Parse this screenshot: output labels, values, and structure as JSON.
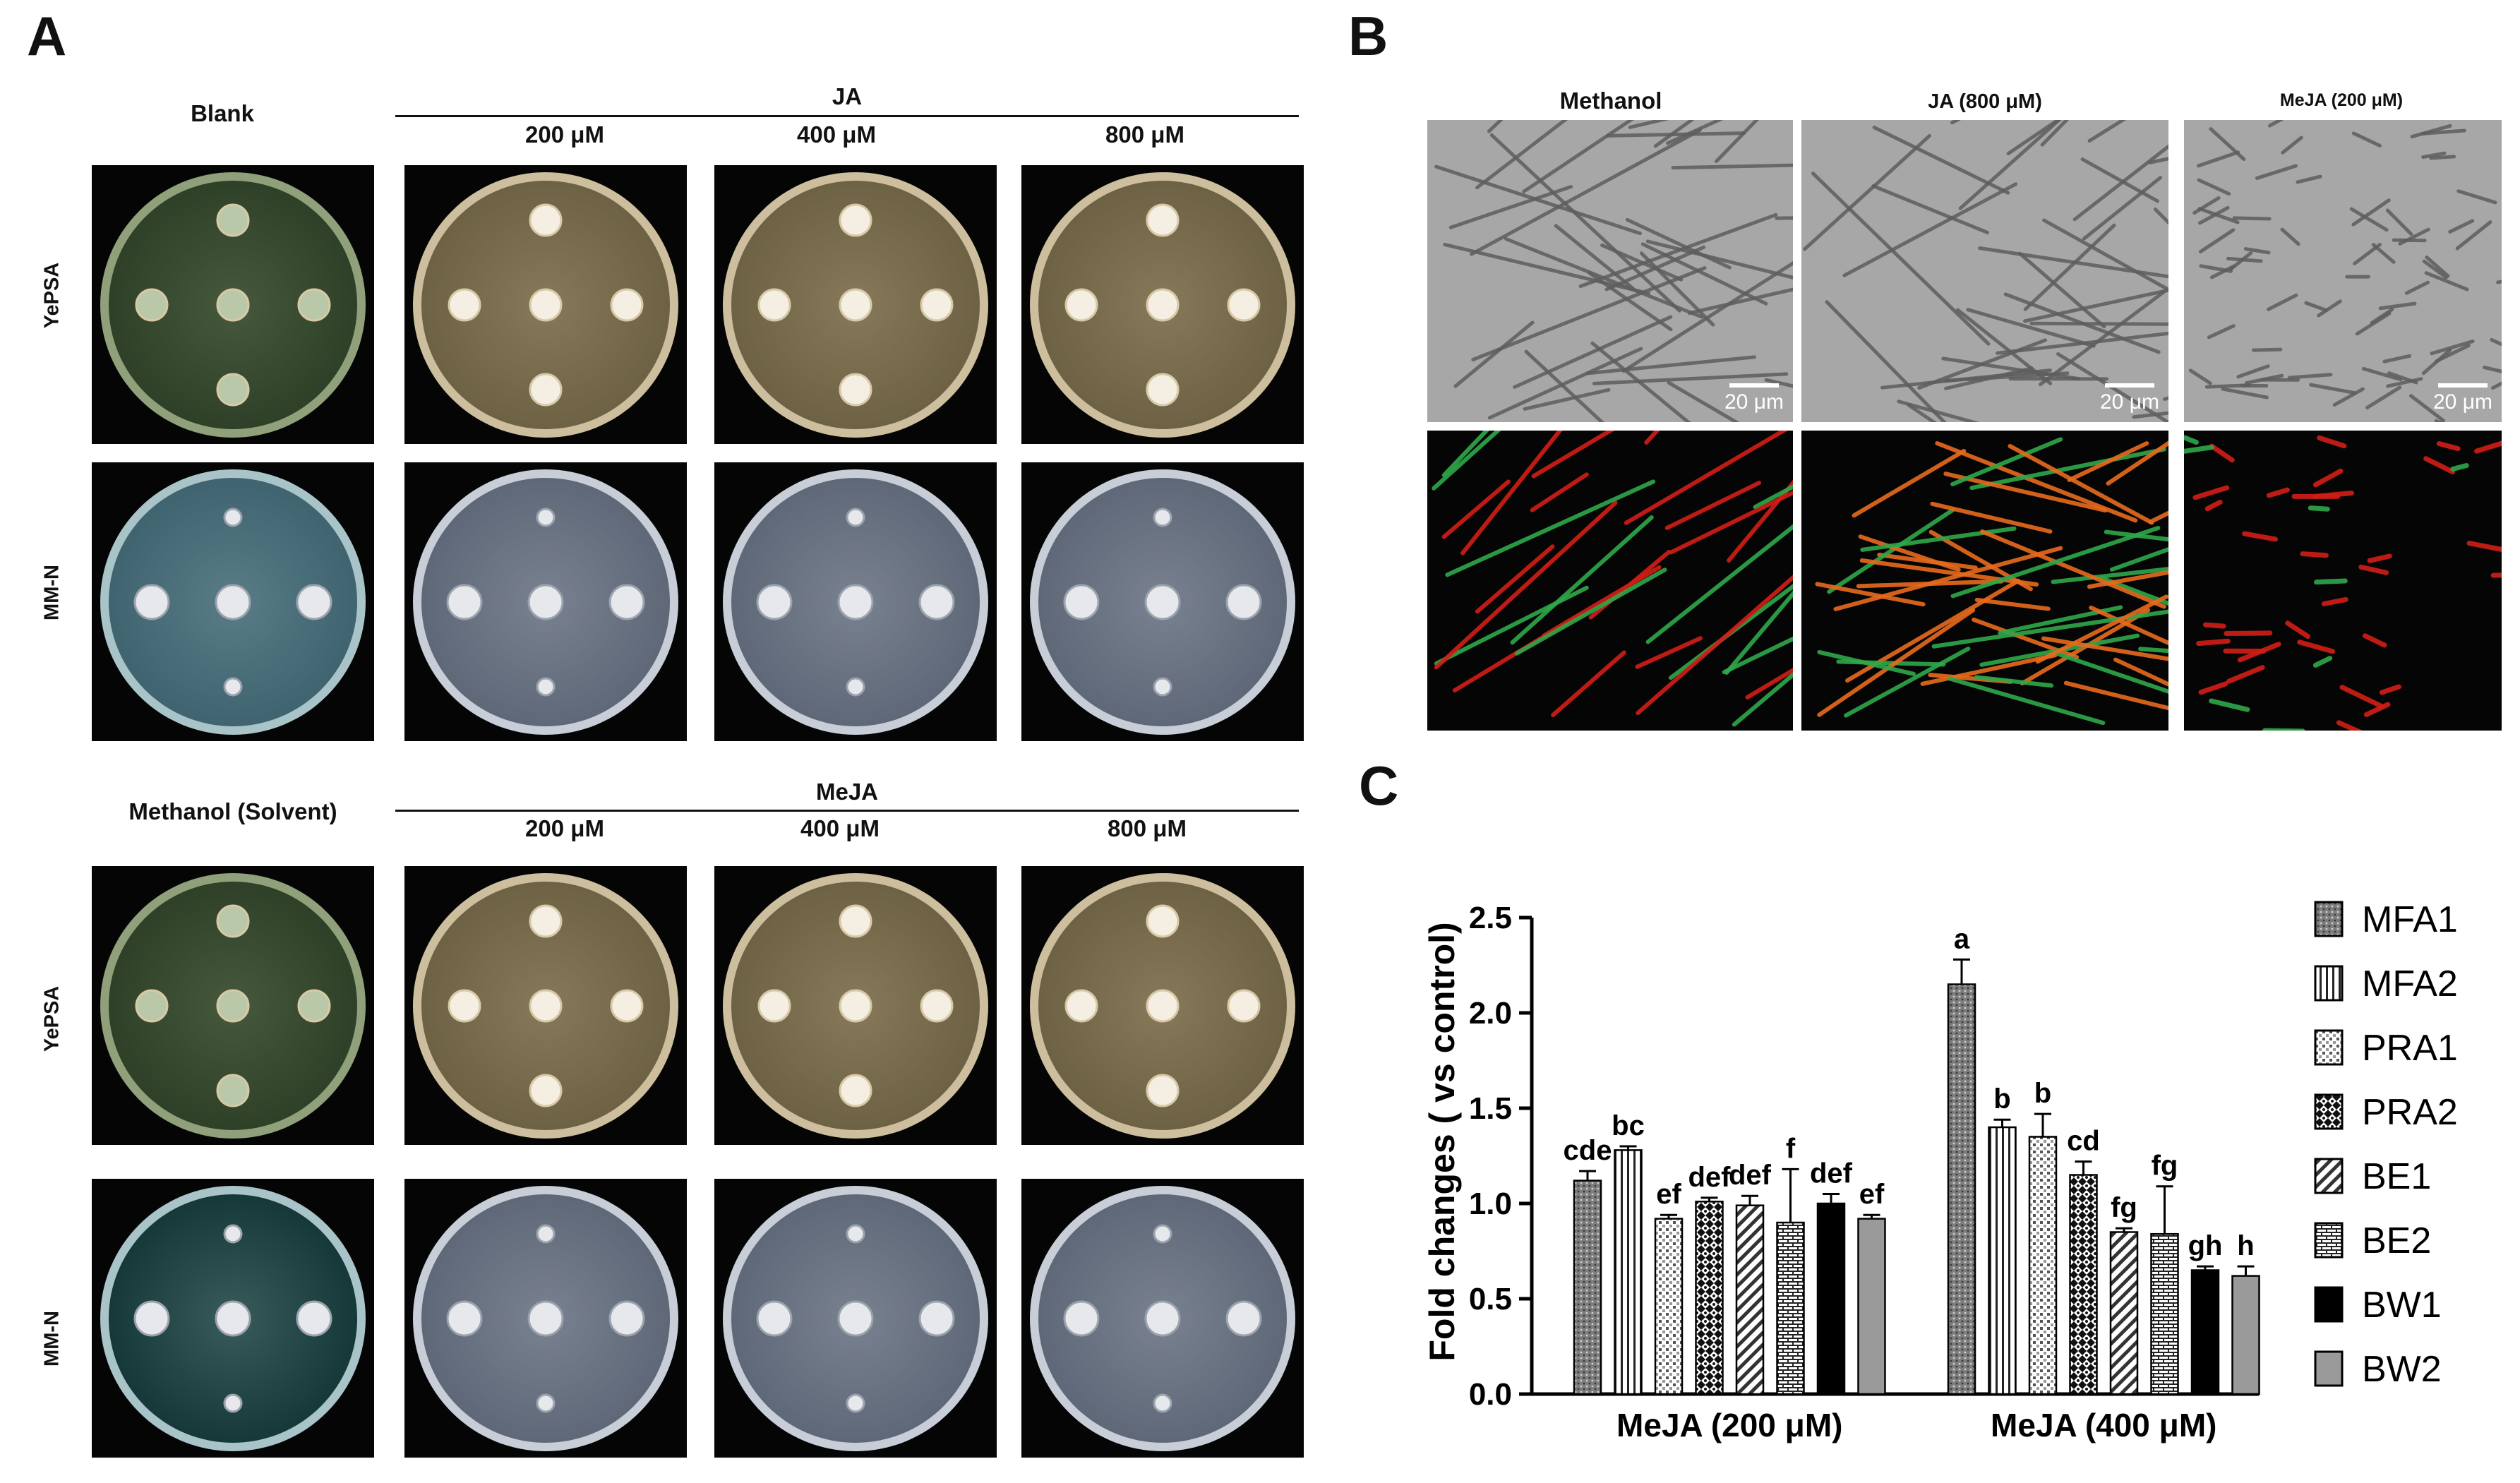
{
  "panel_a": {
    "letter": "A",
    "top": {
      "blank_label": "Blank",
      "group_label": "JA",
      "conc": [
        "200 μM",
        "400 μM",
        "800 μM"
      ],
      "rows": [
        "YePSA",
        "MM-N"
      ]
    },
    "bottom": {
      "blank_label": "Methanol (Solvent)",
      "group_label": "MeJA",
      "conc": [
        "200 μM",
        "400 μM",
        "800 μM"
      ],
      "rows": [
        "YePSA",
        "MM-N"
      ]
    }
  },
  "panel_b": {
    "letter": "B",
    "columns": [
      "Methanol",
      "JA (800 μM)",
      "MeJA (200 μM)"
    ],
    "scale_label": "20 μm"
  },
  "panel_c": {
    "letter": "C",
    "chart_data": {
      "type": "bar",
      "ylabel": "Fold changes ( vs control)",
      "ylim": [
        0,
        2.5
      ],
      "yticks": [
        "0.0",
        "0.5",
        "1.0",
        "1.5",
        "2.0",
        "2.5"
      ],
      "groups": [
        "MeJA (200 μM)",
        "MeJA (400 μM)"
      ],
      "series": [
        {
          "name": "MFA1",
          "values": [
            1.12,
            2.15
          ],
          "errors": [
            0.05,
            0.13
          ],
          "letters": [
            "cde",
            "a"
          ],
          "pattern": "dots",
          "color": "#8a8a8a"
        },
        {
          "name": "MFA2",
          "values": [
            1.28,
            1.4
          ],
          "errors": [
            0.02,
            0.04
          ],
          "letters": [
            "bc",
            "b"
          ],
          "pattern": "vlines",
          "color": "#ffffff"
        },
        {
          "name": "PRA1",
          "values": [
            0.92,
            1.35
          ],
          "errors": [
            0.02,
            0.12
          ],
          "letters": [
            "ef",
            "b"
          ],
          "pattern": "grid",
          "color": "#ffffff"
        },
        {
          "name": "PRA2",
          "values": [
            1.01,
            1.15
          ],
          "errors": [
            0.02,
            0.07
          ],
          "letters": [
            "def",
            "cd"
          ],
          "pattern": "checker",
          "color": "#111111"
        },
        {
          "name": "BE1",
          "values": [
            0.99,
            0.85
          ],
          "errors": [
            0.05,
            0.02
          ],
          "letters": [
            "def",
            "fg"
          ],
          "pattern": "diag",
          "color": "#ffffff"
        },
        {
          "name": "BE2",
          "values": [
            0.9,
            0.84
          ],
          "errors": [
            0.28,
            0.25
          ],
          "letters": [
            "f",
            "fg"
          ],
          "pattern": "brick",
          "color": "#ffffff"
        },
        {
          "name": "BW1",
          "values": [
            1.0,
            0.65
          ],
          "errors": [
            0.05,
            0.02
          ],
          "letters": [
            "def",
            "gh"
          ],
          "pattern": "solid",
          "color": "#000000"
        },
        {
          "name": "BW2",
          "values": [
            0.92,
            0.62
          ],
          "errors": [
            0.02,
            0.05
          ],
          "letters": [
            "ef",
            "h"
          ],
          "pattern": "solid",
          "color": "#9a9a9a"
        }
      ]
    }
  }
}
